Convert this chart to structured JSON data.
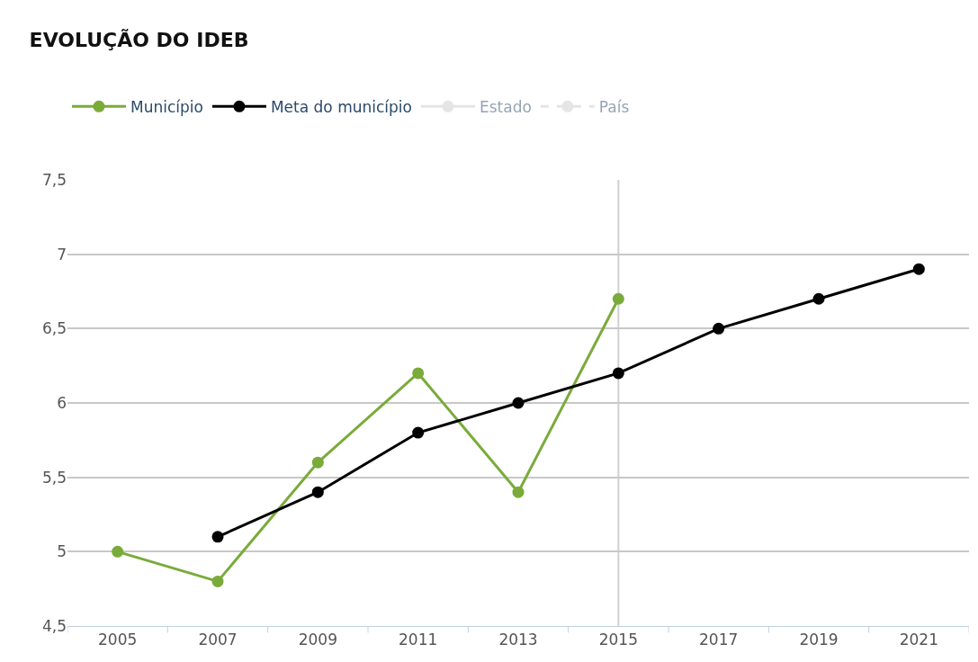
{
  "chart_data": {
    "type": "line",
    "title": "EVOLUÇÃO DO IDEB",
    "categories": [
      "2005",
      "2007",
      "2009",
      "2011",
      "2013",
      "2015",
      "2017",
      "2019",
      "2021"
    ],
    "series": [
      {
        "name": "Município",
        "color": "#7aab3a",
        "values": [
          5.0,
          4.8,
          5.6,
          6.2,
          5.4,
          6.7,
          null,
          null,
          null
        ]
      },
      {
        "name": "Meta do município",
        "color": "#000000",
        "values": [
          null,
          5.1,
          5.4,
          5.8,
          6.0,
          6.2,
          6.5,
          6.7,
          6.9
        ]
      },
      {
        "name": "Estado",
        "color": "#cccccc",
        "values": [
          null,
          null,
          null,
          null,
          null,
          null,
          null,
          null,
          null
        ]
      },
      {
        "name": "País",
        "color": "#cccccc",
        "line_style": "dashed",
        "values": [
          null,
          null,
          null,
          null,
          null,
          null,
          null,
          null,
          null
        ]
      }
    ],
    "ylim": [
      4.5,
      7.5
    ],
    "yticks": [
      {
        "value": 4.5,
        "label": "4,5"
      },
      5,
      {
        "value": 5.5,
        "label": "5,5"
      },
      6,
      {
        "value": 6.5,
        "label": "6,5"
      },
      7,
      {
        "value": 7.5,
        "label": "7,5"
      }
    ],
    "ref_lines": [
      {
        "axis": "x",
        "value": "2015",
        "color": "#d0d0d0"
      }
    ],
    "grid": "y",
    "legend": "top left",
    "marker": "circle",
    "line_style": "solid"
  }
}
